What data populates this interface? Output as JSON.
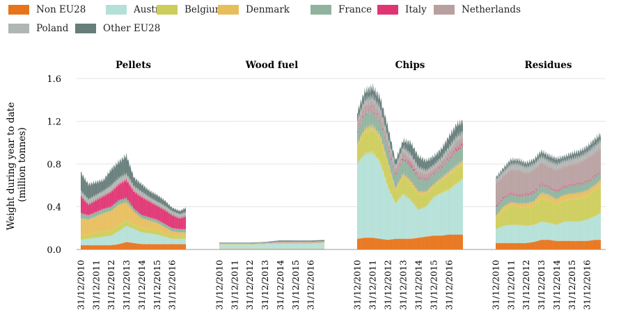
{
  "chart_data": {
    "type": "area",
    "stacked": true,
    "ylabel_line1": "Weight during year to date",
    "ylabel_line2": "(million tonnes)",
    "ylim": [
      0,
      1.6
    ],
    "yticks": [
      "0.0",
      "0.4",
      "0.8",
      "1.2",
      "1.6"
    ],
    "ytick_values": [
      0,
      0.4,
      0.8,
      1.2,
      1.6
    ],
    "date_labels": [
      "31/12/2010",
      "31/12/2011",
      "31/12/2012",
      "31/12/2013",
      "31/12/2014",
      "31/12/2015",
      "31/12/2016"
    ],
    "series_order": [
      "Non EU28",
      "Austria",
      "Belgium",
      "Denmark",
      "France",
      "Italy",
      "Netherlands",
      "Poland",
      "Other EU28"
    ],
    "legend": [
      {
        "name": "Non EU28",
        "color": "#E8731A"
      },
      {
        "name": "Austria",
        "color": "#B4E0D8"
      },
      {
        "name": "Belgium",
        "color": "#CDCD5A"
      },
      {
        "name": "Denmark",
        "color": "#E8BE5C"
      },
      {
        "name": "France",
        "color": "#8FB39E"
      },
      {
        "name": "Italy",
        "color": "#E03473"
      },
      {
        "name": "Netherlands",
        "color": "#B8A0A0"
      },
      {
        "name": "Poland",
        "color": "#AFB6B4"
      },
      {
        "name": "Other EU28",
        "color": "#667D7A"
      }
    ],
    "panels": [
      {
        "title": "Pellets",
        "time_points": [
          2010.0,
          2010.5,
          2011.0,
          2011.5,
          2012.0,
          2012.5,
          2013.0,
          2013.5,
          2014.0,
          2014.5,
          2015.0,
          2015.5,
          2016.0,
          2016.5,
          2016.9
        ],
        "series": [
          {
            "name": "Non EU28",
            "values": [
              0.04,
              0.04,
              0.04,
              0.04,
              0.04,
              0.05,
              0.07,
              0.06,
              0.05,
              0.05,
              0.05,
              0.05,
              0.05,
              0.05,
              0.05
            ]
          },
          {
            "name": "Austria",
            "values": [
              0.05,
              0.06,
              0.07,
              0.08,
              0.09,
              0.12,
              0.15,
              0.13,
              0.11,
              0.1,
              0.09,
              0.07,
              0.05,
              0.05,
              0.05
            ]
          },
          {
            "name": "Belgium",
            "values": [
              0.04,
              0.04,
              0.05,
              0.05,
              0.05,
              0.06,
              0.05,
              0.04,
              0.04,
              0.04,
              0.04,
              0.03,
              0.03,
              0.03,
              0.03
            ]
          },
          {
            "name": "Denmark",
            "values": [
              0.16,
              0.14,
              0.15,
              0.17,
              0.18,
              0.19,
              0.17,
              0.12,
              0.09,
              0.08,
              0.07,
              0.06,
              0.04,
              0.03,
              0.03
            ]
          },
          {
            "name": "France",
            "values": [
              0.05,
              0.04,
              0.04,
              0.04,
              0.04,
              0.04,
              0.04,
              0.03,
              0.03,
              0.03,
              0.03,
              0.03,
              0.03,
              0.03,
              0.03
            ]
          },
          {
            "name": "Italy",
            "values": [
              0.16,
              0.1,
              0.11,
              0.12,
              0.14,
              0.15,
              0.17,
              0.16,
              0.17,
              0.15,
              0.13,
              0.13,
              0.12,
              0.1,
              0.12
            ]
          },
          {
            "name": "Netherlands",
            "values": [
              0.02,
              0.02,
              0.02,
              0.02,
              0.02,
              0.02,
              0.02,
              0.02,
              0.02,
              0.02,
              0.02,
              0.02,
              0.02,
              0.02,
              0.02
            ]
          },
          {
            "name": "Poland",
            "values": [
              0.03,
              0.03,
              0.03,
              0.03,
              0.04,
              0.04,
              0.04,
              0.03,
              0.03,
              0.02,
              0.02,
              0.02,
              0.02,
              0.02,
              0.02
            ]
          },
          {
            "name": "Other EU28",
            "values": [
              0.17,
              0.14,
              0.12,
              0.1,
              0.15,
              0.15,
              0.17,
              0.08,
              0.07,
              0.06,
              0.06,
              0.05,
              0.03,
              0.03,
              0.04
            ]
          }
        ]
      },
      {
        "title": "Wood fuel",
        "time_points": [
          2010.0,
          2011.0,
          2012.0,
          2013.0,
          2014.0,
          2015.0,
          2016.0,
          2016.9
        ],
        "series": [
          {
            "name": "Non EU28",
            "values": [
              0.005,
              0.005,
              0.005,
              0.005,
              0.005,
              0.005,
              0.005,
              0.005
            ]
          },
          {
            "name": "Austria",
            "values": [
              0.04,
              0.04,
              0.04,
              0.045,
              0.05,
              0.05,
              0.05,
              0.055
            ]
          },
          {
            "name": "Belgium",
            "values": [
              0.003,
              0.003,
              0.003,
              0.003,
              0.004,
              0.004,
              0.004,
              0.004
            ]
          },
          {
            "name": "Denmark",
            "values": [
              0.002,
              0.002,
              0.002,
              0.002,
              0.003,
              0.003,
              0.003,
              0.003
            ]
          },
          {
            "name": "France",
            "values": [
              0.002,
              0.002,
              0.002,
              0.002,
              0.002,
              0.002,
              0.002,
              0.002
            ]
          },
          {
            "name": "Italy",
            "values": [
              0.002,
              0.002,
              0.002,
              0.002,
              0.002,
              0.002,
              0.002,
              0.002
            ]
          },
          {
            "name": "Netherlands",
            "values": [
              0.003,
              0.003,
              0.003,
              0.003,
              0.005,
              0.004,
              0.004,
              0.004
            ]
          },
          {
            "name": "Poland",
            "values": [
              0.003,
              0.003,
              0.003,
              0.003,
              0.004,
              0.004,
              0.004,
              0.004
            ]
          },
          {
            "name": "Other EU28",
            "values": [
              0.005,
              0.005,
              0.005,
              0.005,
              0.01,
              0.01,
              0.01,
              0.01
            ]
          }
        ]
      },
      {
        "title": "Chips",
        "time_points": [
          2010.0,
          2010.5,
          2011.0,
          2011.5,
          2012.0,
          2012.5,
          2013.0,
          2013.5,
          2014.0,
          2014.5,
          2015.0,
          2015.5,
          2016.0,
          2016.5,
          2016.9
        ],
        "series": [
          {
            "name": "Non EU28",
            "values": [
              0.1,
              0.11,
              0.11,
              0.1,
              0.09,
              0.1,
              0.1,
              0.1,
              0.11,
              0.12,
              0.13,
              0.13,
              0.14,
              0.14,
              0.14
            ]
          },
          {
            "name": "Austria",
            "values": [
              0.7,
              0.78,
              0.8,
              0.72,
              0.5,
              0.33,
              0.42,
              0.36,
              0.26,
              0.28,
              0.36,
              0.4,
              0.42,
              0.48,
              0.52
            ]
          },
          {
            "name": "Belgium",
            "values": [
              0.16,
              0.21,
              0.22,
              0.22,
              0.21,
              0.12,
              0.16,
              0.15,
              0.14,
              0.12,
              0.1,
              0.12,
              0.14,
              0.14,
              0.14
            ]
          },
          {
            "name": "Denmark",
            "values": [
              0.02,
              0.03,
              0.03,
              0.03,
              0.03,
              0.02,
              0.03,
              0.03,
              0.03,
              0.02,
              0.02,
              0.02,
              0.03,
              0.03,
              0.03
            ]
          },
          {
            "name": "France",
            "values": [
              0.12,
              0.14,
              0.14,
              0.14,
              0.13,
              0.12,
              0.14,
              0.14,
              0.13,
              0.11,
              0.1,
              0.1,
              0.12,
              0.14,
              0.14
            ]
          },
          {
            "name": "Italy",
            "values": [
              0.01,
              0.01,
              0.01,
              0.01,
              0.01,
              0.01,
              0.01,
              0.02,
              0.01,
              0.01,
              0.01,
              0.01,
              0.01,
              0.02,
              0.02
            ]
          },
          {
            "name": "Netherlands",
            "values": [
              0.07,
              0.08,
              0.08,
              0.07,
              0.05,
              0.05,
              0.06,
              0.05,
              0.05,
              0.05,
              0.04,
              0.05,
              0.06,
              0.07,
              0.07
            ]
          },
          {
            "name": "Poland",
            "values": [
              0.03,
              0.04,
              0.04,
              0.04,
              0.04,
              0.03,
              0.04,
              0.04,
              0.04,
              0.03,
              0.03,
              0.03,
              0.04,
              0.04,
              0.04
            ]
          },
          {
            "name": "Other EU28",
            "values": [
              0.07,
              0.08,
              0.09,
              0.09,
              0.09,
              0.05,
              0.06,
              0.11,
              0.1,
              0.09,
              0.08,
              0.08,
              0.1,
              0.11,
              0.1
            ]
          }
        ]
      },
      {
        "title": "Residues",
        "time_points": [
          2010.0,
          2010.5,
          2011.0,
          2011.5,
          2012.0,
          2012.5,
          2013.0,
          2013.5,
          2014.0,
          2014.5,
          2015.0,
          2015.5,
          2016.0,
          2016.5,
          2016.9
        ],
        "series": [
          {
            "name": "Non EU28",
            "values": [
              0.06,
              0.06,
              0.06,
              0.06,
              0.06,
              0.07,
              0.09,
              0.09,
              0.08,
              0.08,
              0.08,
              0.08,
              0.08,
              0.09,
              0.09
            ]
          },
          {
            "name": "Austria",
            "values": [
              0.13,
              0.16,
              0.17,
              0.17,
              0.16,
              0.16,
              0.17,
              0.16,
              0.15,
              0.18,
              0.18,
              0.18,
              0.2,
              0.22,
              0.25
            ]
          },
          {
            "name": "Belgium",
            "values": [
              0.1,
              0.15,
              0.18,
              0.17,
              0.17,
              0.18,
              0.22,
              0.21,
              0.19,
              0.2,
              0.21,
              0.22,
              0.22,
              0.24,
              0.26
            ]
          },
          {
            "name": "Denmark",
            "values": [
              0.02,
              0.03,
              0.03,
              0.03,
              0.04,
              0.04,
              0.05,
              0.05,
              0.05,
              0.05,
              0.05,
              0.05,
              0.05,
              0.05,
              0.05
            ]
          },
          {
            "name": "France",
            "values": [
              0.08,
              0.08,
              0.08,
              0.07,
              0.08,
              0.08,
              0.08,
              0.07,
              0.07,
              0.07,
              0.08,
              0.08,
              0.08,
              0.08,
              0.08
            ]
          },
          {
            "name": "Italy",
            "values": [
              0.01,
              0.01,
              0.01,
              0.01,
              0.01,
              0.01,
              0.01,
              0.01,
              0.01,
              0.01,
              0.01,
              0.01,
              0.01,
              0.01,
              0.01
            ]
          },
          {
            "name": "Netherlands",
            "values": [
              0.22,
              0.2,
              0.22,
              0.24,
              0.2,
              0.21,
              0.2,
              0.19,
              0.2,
              0.19,
              0.19,
              0.2,
              0.22,
              0.22,
              0.22
            ]
          },
          {
            "name": "Poland",
            "values": [
              0.03,
              0.04,
              0.05,
              0.05,
              0.05,
              0.05,
              0.05,
              0.05,
              0.05,
              0.05,
              0.05,
              0.05,
              0.05,
              0.06,
              0.06
            ]
          },
          {
            "name": "Other EU28",
            "values": [
              0.02,
              0.03,
              0.04,
              0.04,
              0.04,
              0.04,
              0.05,
              0.05,
              0.05,
              0.04,
              0.05,
              0.05,
              0.05,
              0.06,
              0.06
            ]
          }
        ]
      }
    ]
  }
}
